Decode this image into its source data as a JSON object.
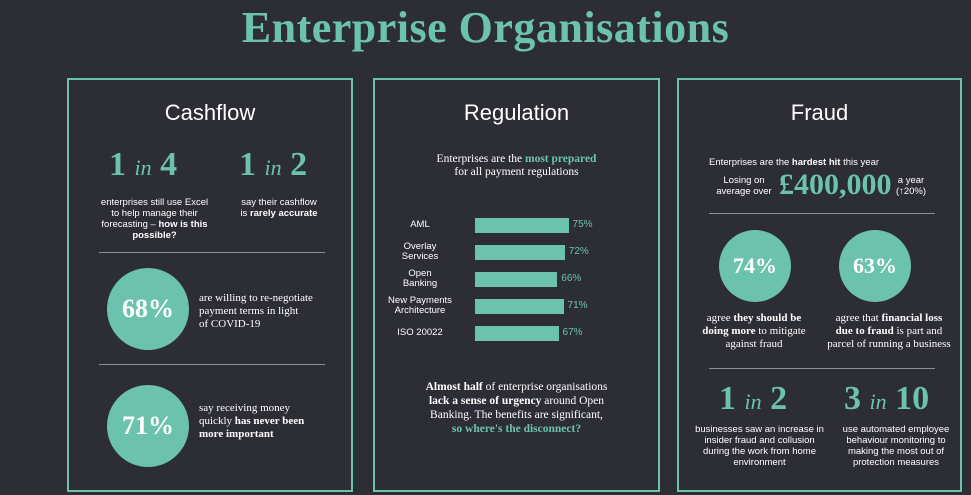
{
  "page_title": "Enterprise Organisations",
  "cashflow": {
    "title": "Cashflow",
    "stat1": {
      "num": "1",
      "in": "in",
      "den": "4",
      "line1": "enterprises still use Excel",
      "line2": "to help manage their",
      "line3a": "forecasting – ",
      "line3b": "how is this",
      "line4": "possible?"
    },
    "stat2": {
      "num": "1",
      "in": "in",
      "den": "2",
      "line1": "say their cashflow",
      "line2a": "is ",
      "line2b": "rarely accurate"
    },
    "stat3": {
      "value": "68%",
      "line1": "are willing to re-negotiate",
      "line2": "payment terms in light",
      "line3": "of COVID-19"
    },
    "stat4": {
      "value": "71%",
      "line1": "say receiving money",
      "line2a": "quickly ",
      "line2b": "has never been",
      "line3": "more important"
    }
  },
  "regulation": {
    "title": "Regulation",
    "intro_a": "Enterprises are the ",
    "intro_b": "most prepared",
    "intro_c": "for all payment regulations",
    "outro": {
      "l1a": "Almost half",
      "l1b": " of enterprise organisations",
      "l2a": "lack a sense of urgency",
      "l2b": " around Open",
      "l3": "Banking. The benefits are significant,",
      "l4": "so where's the disconnect?"
    }
  },
  "chart_data": {
    "type": "bar",
    "orientation": "horizontal",
    "categories": [
      "AML",
      "Overlay Services",
      "Open Banking",
      "New Payments Architecture",
      "ISO 20022"
    ],
    "category_lines": [
      [
        "AML"
      ],
      [
        "Overlay",
        "Services"
      ],
      [
        "Open",
        "Banking"
      ],
      [
        "New Payments",
        "Architecture"
      ],
      [
        "ISO 20022"
      ]
    ],
    "values": [
      75,
      72,
      66,
      71,
      67
    ],
    "value_labels": [
      "75%",
      "72%",
      "66%",
      "71%",
      "67%"
    ],
    "xlim": [
      0,
      100
    ],
    "grid": false,
    "legend": "none"
  },
  "fraud": {
    "title": "Fraud",
    "intro_a": "Enterprises are the ",
    "intro_b": "hardest hit",
    "intro_c": " this year",
    "losing_l1": "Losing on",
    "losing_l2": "average over",
    "amount": "£400,000",
    "year_l1": "a year",
    "year_l2": "(↑20%)",
    "stat1": {
      "value": "74%",
      "l1a": "agree ",
      "l1b": "they should be",
      "l2a": "doing more",
      "l2b": " to mitigate",
      "l3": "against fraud"
    },
    "stat2": {
      "value": "63%",
      "l1a": "agree that ",
      "l1b": "financial loss",
      "l2a": "due to fraud",
      "l2b": " is part and",
      "l3": "parcel of running a business"
    },
    "stat3": {
      "num": "1",
      "in": "in",
      "den": "2",
      "l1": "businesses saw an increase in",
      "l2": "insider fraud and collusion",
      "l3": "during the work from home",
      "l4": "environment"
    },
    "stat4": {
      "num": "3",
      "in": "in",
      "den": "10",
      "l1": "use automated employee",
      "l2": "behaviour monitoring to",
      "l3": "making the most out of",
      "l4": "protection measures"
    }
  }
}
